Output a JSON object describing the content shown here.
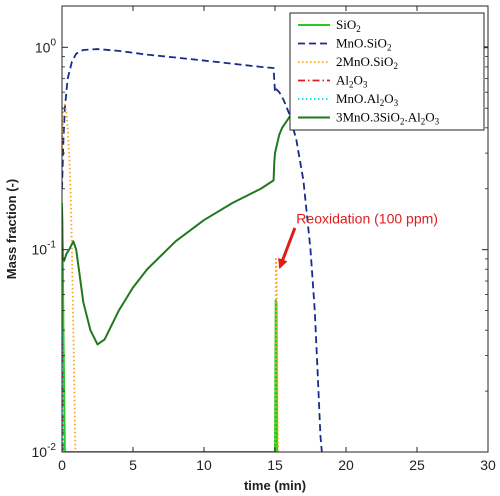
{
  "chart_data": {
    "type": "line",
    "title": "",
    "xlabel": "time (min)",
    "ylabel": "Mass fraction (-)",
    "xlim": [
      0,
      30
    ],
    "ylim": [
      0.01,
      1.6
    ],
    "yscale": "log",
    "x_ticks": [
      0,
      5,
      10,
      15,
      20,
      25,
      30
    ],
    "x_tick_labels": [
      "0",
      "5",
      "10",
      "15",
      "20",
      "25",
      "30"
    ],
    "y_ticks": [
      0.01,
      0.1,
      1
    ],
    "y_tick_labels": [
      {
        "base": "10",
        "exp": "-2"
      },
      {
        "base": "10",
        "exp": "-1"
      },
      {
        "base": "10",
        "exp": "0"
      }
    ],
    "grid": false,
    "legend_position": "top-right",
    "series": [
      {
        "name": "SiO",
        "name_sub": "2",
        "color": "#22cc22",
        "dash": "solid",
        "x": [
          0.0,
          0.05,
          0.1,
          0.2,
          0.3,
          14.97,
          15.0,
          15.05,
          15.1,
          15.15,
          15.2
        ],
        "y": [
          0.17,
          0.1,
          0.04,
          0.01,
          0.01,
          0.01,
          0.01,
          0.056,
          0.055,
          0.01,
          0.01
        ]
      },
      {
        "name": "MnO.SiO",
        "name_sub": "2",
        "color": "#1a2a8c",
        "dash": "dashed",
        "x": [
          0.0,
          0.1,
          0.2,
          0.4,
          0.7,
          1.0,
          1.5,
          2.5,
          4.0,
          6.0,
          8.0,
          10.0,
          12.0,
          14.0,
          14.9,
          15.0,
          15.1,
          15.3,
          15.6,
          16.0,
          16.5,
          17.0,
          17.5,
          17.8,
          18.0,
          18.2,
          18.3
        ],
        "y": [
          0.2,
          0.35,
          0.5,
          0.7,
          0.85,
          0.93,
          0.97,
          0.98,
          0.96,
          0.92,
          0.89,
          0.86,
          0.83,
          0.8,
          0.79,
          0.6,
          0.62,
          0.6,
          0.55,
          0.47,
          0.35,
          0.22,
          0.1,
          0.05,
          0.025,
          0.012,
          0.01
        ]
      },
      {
        "name": "2MnO.SiO",
        "name_sub": "2",
        "color": "#f5a623",
        "dash": "dotted",
        "x": [
          0.0,
          0.1,
          0.2,
          0.3,
          0.4,
          0.5,
          0.6,
          0.7,
          0.8,
          0.9,
          0.95,
          15.0,
          15.02,
          15.06,
          15.12,
          15.18,
          15.22
        ],
        "y": [
          0.3,
          0.5,
          0.52,
          0.48,
          0.4,
          0.3,
          0.2,
          0.1,
          0.04,
          0.015,
          0.01,
          0.01,
          0.01,
          0.09,
          0.08,
          0.02,
          0.01
        ]
      },
      {
        "name": "Al",
        "name_sub": "2",
        "name_tail": "O",
        "name_sub2": "3",
        "color": "#e31a1c",
        "dash": "dashdot",
        "x": [
          0.0,
          0.02,
          0.04,
          0.06
        ],
        "y": [
          0.035,
          0.03,
          0.02,
          0.01
        ]
      },
      {
        "name": "MnO.Al",
        "name_sub": "2",
        "name_tail": "O",
        "name_sub2": "3",
        "color": "#00e5ee",
        "dash": "dotted",
        "x": [
          0.0,
          0.03,
          0.06,
          0.1
        ],
        "y": [
          0.04,
          0.035,
          0.02,
          0.01
        ]
      },
      {
        "name": "3MnO.3SiO",
        "name_sub": "2",
        "name_tail": ".Al",
        "name_sub2": "2",
        "name_tail2": "O",
        "name_sub3": "3",
        "color": "#1f7a1f",
        "dash": "solid",
        "x": [
          0.0,
          0.05,
          0.15,
          0.3,
          0.5,
          0.8,
          1.0,
          1.5,
          2.0,
          2.5,
          3.0,
          4.0,
          5.0,
          6.0,
          8.0,
          10.0,
          12.0,
          14.0,
          14.9,
          14.95,
          15.0,
          15.3,
          15.5,
          16.0,
          16.5,
          17.0,
          17.5,
          18.0,
          18.5,
          19.0,
          20.0,
          22.0,
          25.0,
          30.0
        ],
        "y": [
          0.16,
          0.09,
          0.088,
          0.095,
          0.1,
          0.11,
          0.1,
          0.055,
          0.04,
          0.034,
          0.036,
          0.05,
          0.065,
          0.08,
          0.11,
          0.14,
          0.17,
          0.2,
          0.22,
          0.27,
          0.3,
          0.37,
          0.4,
          0.45,
          0.52,
          0.62,
          0.74,
          0.88,
          1.0,
          1.0,
          1.0,
          1.0,
          1.0,
          1.0
        ]
      }
    ],
    "annotations": [
      {
        "text": "Reoxidation (100 ppm)",
        "color": "#e31a1c",
        "text_x": 16.5,
        "text_y": 0.135,
        "arrow_from_x": 16.4,
        "arrow_from_y": 0.128,
        "arrow_to_x": 15.35,
        "arrow_to_y": 0.082
      }
    ]
  }
}
